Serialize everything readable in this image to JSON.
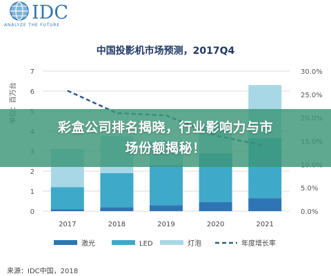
{
  "logo": {
    "brand": "IDC",
    "tagline": "ANALYZE THE FUTURE"
  },
  "banner": {
    "line1": "彩盒公司排名揭晓，行业影响力与市",
    "line2": "场份额揭秘！"
  },
  "source_text": "来源：IDC中国，2018",
  "colors": {
    "laser": "#2e75b6",
    "led": "#3fa9c9",
    "bulb": "#a8d8e6",
    "growth": "#2b5b8a",
    "title": "#1f3864",
    "banner": "#3c9678"
  },
  "chart_data": {
    "type": "bar",
    "stacked": true,
    "title": "中国投影机市场预测，2017Q4",
    "ylabel": "单位：百万台",
    "categories": [
      "2017",
      "2018",
      "2019",
      "2020",
      "2021"
    ],
    "ylim": [
      0,
      7
    ],
    "yticks": [
      "0",
      "1",
      "2",
      "3",
      "4",
      "5",
      "6",
      "7"
    ],
    "y2lim": [
      0,
      30
    ],
    "y2ticks": [
      "0.0%",
      "5.0%",
      "10.0%",
      "15.0%",
      "20.0%",
      "25.0%",
      "30.0%"
    ],
    "series": [
      {
        "name": "激光",
        "values": [
          0.1,
          0.2,
          0.3,
          0.45,
          0.65
        ]
      },
      {
        "name": "LED",
        "values": [
          1.1,
          1.7,
          2.0,
          2.45,
          3.0
        ]
      },
      {
        "name": "灯泡",
        "values": [
          1.9,
          1.85,
          1.2,
          1.5,
          2.65
        ]
      }
    ],
    "line_series": {
      "name": "年度增长率",
      "axis": "right",
      "values": [
        25.8,
        21.0,
        20.5,
        16.2,
        14.0
      ]
    },
    "grid": true,
    "legend": "bottom"
  }
}
